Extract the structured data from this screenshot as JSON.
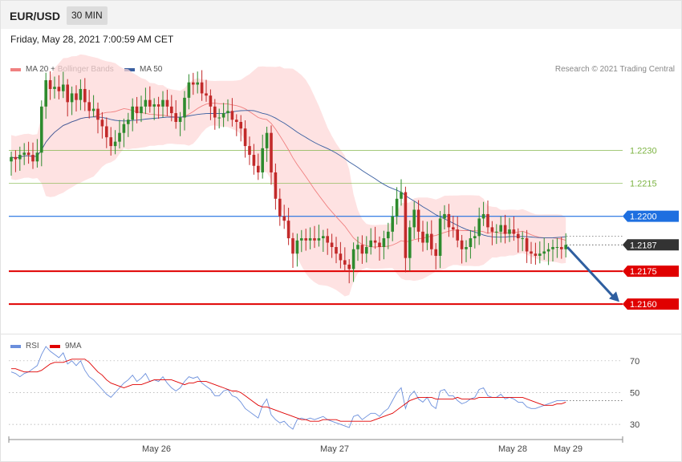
{
  "header": {
    "symbol": "EUR/USD",
    "timeframe": "30 MIN"
  },
  "datetime": "Friday, May 28, 2021 7:00:59 AM CET",
  "legend_main": [
    {
      "label": "MA 20 + Bollinger Bands",
      "color": "#f08080"
    },
    {
      "label": "MA 50",
      "color": "#3a5fa0"
    }
  ],
  "legend_rsi": [
    {
      "label": "RSI",
      "color": "#6b8fdc"
    },
    {
      "label": "9MA",
      "color": "#e00000"
    }
  ],
  "credit": "Research © 2021 Trading Central",
  "colors": {
    "up": "#2e8b2e",
    "down": "#c22a2a",
    "band": "#fdd8d8",
    "ma20": "#f08080",
    "ma50": "#3a5fa0"
  },
  "chart_data": [
    {
      "type": "candlestick",
      "ylim": [
        1.2148,
        1.2262
      ],
      "current_price": "1.2187",
      "levels": [
        {
          "label": "1.2230",
          "value": 1.223,
          "color": "#7cb342",
          "style": "solid-thin"
        },
        {
          "label": "1.2215",
          "value": 1.2215,
          "color": "#7cb342",
          "style": "solid-thin"
        },
        {
          "label": "1.2200",
          "value": 1.22,
          "color": "#1e6fe0",
          "style": "badge"
        },
        {
          "label": "1.2187",
          "value": 1.2187,
          "color": "#333333",
          "style": "badge-dotted"
        },
        {
          "label": "1.2175",
          "value": 1.2175,
          "color": "#e00000",
          "style": "badge"
        },
        {
          "label": "1.2160",
          "value": 1.216,
          "color": "#e00000",
          "style": "badge"
        }
      ],
      "forecast_arrow": {
        "from": 1.2186,
        "to": 1.2161,
        "color": "#2f5fa0"
      },
      "x_ticks": [
        "May 26",
        "May 27",
        "May 28",
        "May 29"
      ],
      "close": [
        1.2227,
        1.2226,
        1.2228,
        1.2229,
        1.2228,
        1.2225,
        1.2229,
        1.225,
        1.2262,
        1.2258,
        1.2259,
        1.2257,
        1.226,
        1.2252,
        1.2256,
        1.2253,
        1.2258,
        1.2252,
        1.2248,
        1.2249,
        1.2244,
        1.2241,
        1.2236,
        1.2232,
        1.2234,
        1.2238,
        1.2242,
        1.2244,
        1.225,
        1.2247,
        1.225,
        1.2253,
        1.225,
        1.2251,
        1.225,
        1.2253,
        1.225,
        1.2247,
        1.2243,
        1.2245,
        1.2254,
        1.2261,
        1.226,
        1.2261,
        1.2256,
        1.2255,
        1.225,
        1.2245,
        1.2245,
        1.2247,
        1.2248,
        1.2244,
        1.2243,
        1.224,
        1.2232,
        1.2228,
        1.2223,
        1.222,
        1.2231,
        1.2238,
        1.222,
        1.2208,
        1.22,
        1.2198,
        1.219,
        1.2183,
        1.2189,
        1.219,
        1.2189,
        1.219,
        1.2189,
        1.219,
        1.2191,
        1.2188,
        1.2186,
        1.2183,
        1.218,
        1.2178,
        1.2176,
        1.2185,
        1.2187,
        1.2183,
        1.2186,
        1.2189,
        1.2188,
        1.2186,
        1.219,
        1.2193,
        1.22,
        1.2208,
        1.2211,
        1.2181,
        1.2195,
        1.2203,
        1.2193,
        1.2188,
        1.2192,
        1.2185,
        1.2182,
        1.2199,
        1.2201,
        1.2195,
        1.2194,
        1.2189,
        1.2185,
        1.2186,
        1.219,
        1.2191,
        1.2199,
        1.2201,
        1.2195,
        1.2193,
        1.2193,
        1.2196,
        1.2192,
        1.2194,
        1.2192,
        1.219,
        1.219,
        1.2184,
        1.2183,
        1.2182,
        1.2183,
        1.2184,
        1.2185,
        1.2186,
        1.2186,
        1.2185,
        1.2187
      ]
    },
    {
      "type": "line",
      "title": "RSI",
      "ylim": [
        22,
        80
      ],
      "y_ticks": [
        "70",
        "50",
        "30"
      ],
      "y_tick_values": [
        70,
        50,
        30
      ],
      "series": [
        {
          "name": "RSI",
          "values": [
            63,
            62,
            60,
            62,
            63,
            65,
            67,
            74,
            79,
            76,
            74,
            72,
            75,
            68,
            70,
            67,
            70,
            64,
            60,
            58,
            55,
            52,
            49,
            47,
            50,
            53,
            56,
            58,
            61,
            57,
            59,
            62,
            57,
            58,
            57,
            60,
            56,
            53,
            51,
            53,
            57,
            60,
            59,
            60,
            56,
            54,
            52,
            48,
            48,
            51,
            52,
            48,
            47,
            44,
            40,
            38,
            36,
            34,
            42,
            46,
            36,
            33,
            31,
            32,
            29,
            27,
            33,
            34,
            33,
            34,
            33,
            34,
            35,
            33,
            32,
            31,
            30,
            29,
            28,
            35,
            36,
            33,
            35,
            37,
            37,
            35,
            38,
            40,
            45,
            50,
            53,
            40,
            48,
            51,
            46,
            44,
            47,
            42,
            40,
            51,
            52,
            48,
            48,
            45,
            43,
            44,
            46,
            47,
            52,
            53,
            48,
            47,
            47,
            49,
            46,
            47,
            46,
            44,
            44,
            41,
            40,
            40,
            41,
            42,
            43,
            44,
            45,
            45,
            45
          ]
        },
        {
          "name": "9MA",
          "values": [
            65,
            65,
            64,
            63,
            63,
            63,
            63,
            64,
            66,
            68,
            69,
            69,
            69,
            70,
            71,
            71,
            71,
            71,
            69,
            66,
            63,
            61,
            58,
            56,
            55,
            54,
            53,
            54,
            55,
            55,
            55,
            56,
            57,
            58,
            58,
            58,
            58,
            58,
            57,
            56,
            55,
            56,
            56,
            57,
            57,
            57,
            56,
            55,
            54,
            53,
            52,
            51,
            51,
            50,
            48,
            46,
            44,
            42,
            41,
            41,
            40,
            39,
            38,
            37,
            36,
            35,
            34,
            33,
            33,
            32,
            32,
            32,
            33,
            33,
            33,
            33,
            32,
            32,
            32,
            32,
            32,
            32,
            32,
            32,
            33,
            34,
            35,
            36,
            37,
            39,
            41,
            43,
            45,
            46,
            47,
            47,
            47,
            47,
            46,
            46,
            46,
            46,
            46,
            47,
            46,
            46,
            46,
            46,
            47,
            47,
            47,
            47,
            47,
            47,
            47,
            47,
            47,
            47,
            47,
            46,
            45,
            44,
            43,
            42,
            42,
            42,
            43,
            43,
            44
          ]
        }
      ]
    }
  ]
}
